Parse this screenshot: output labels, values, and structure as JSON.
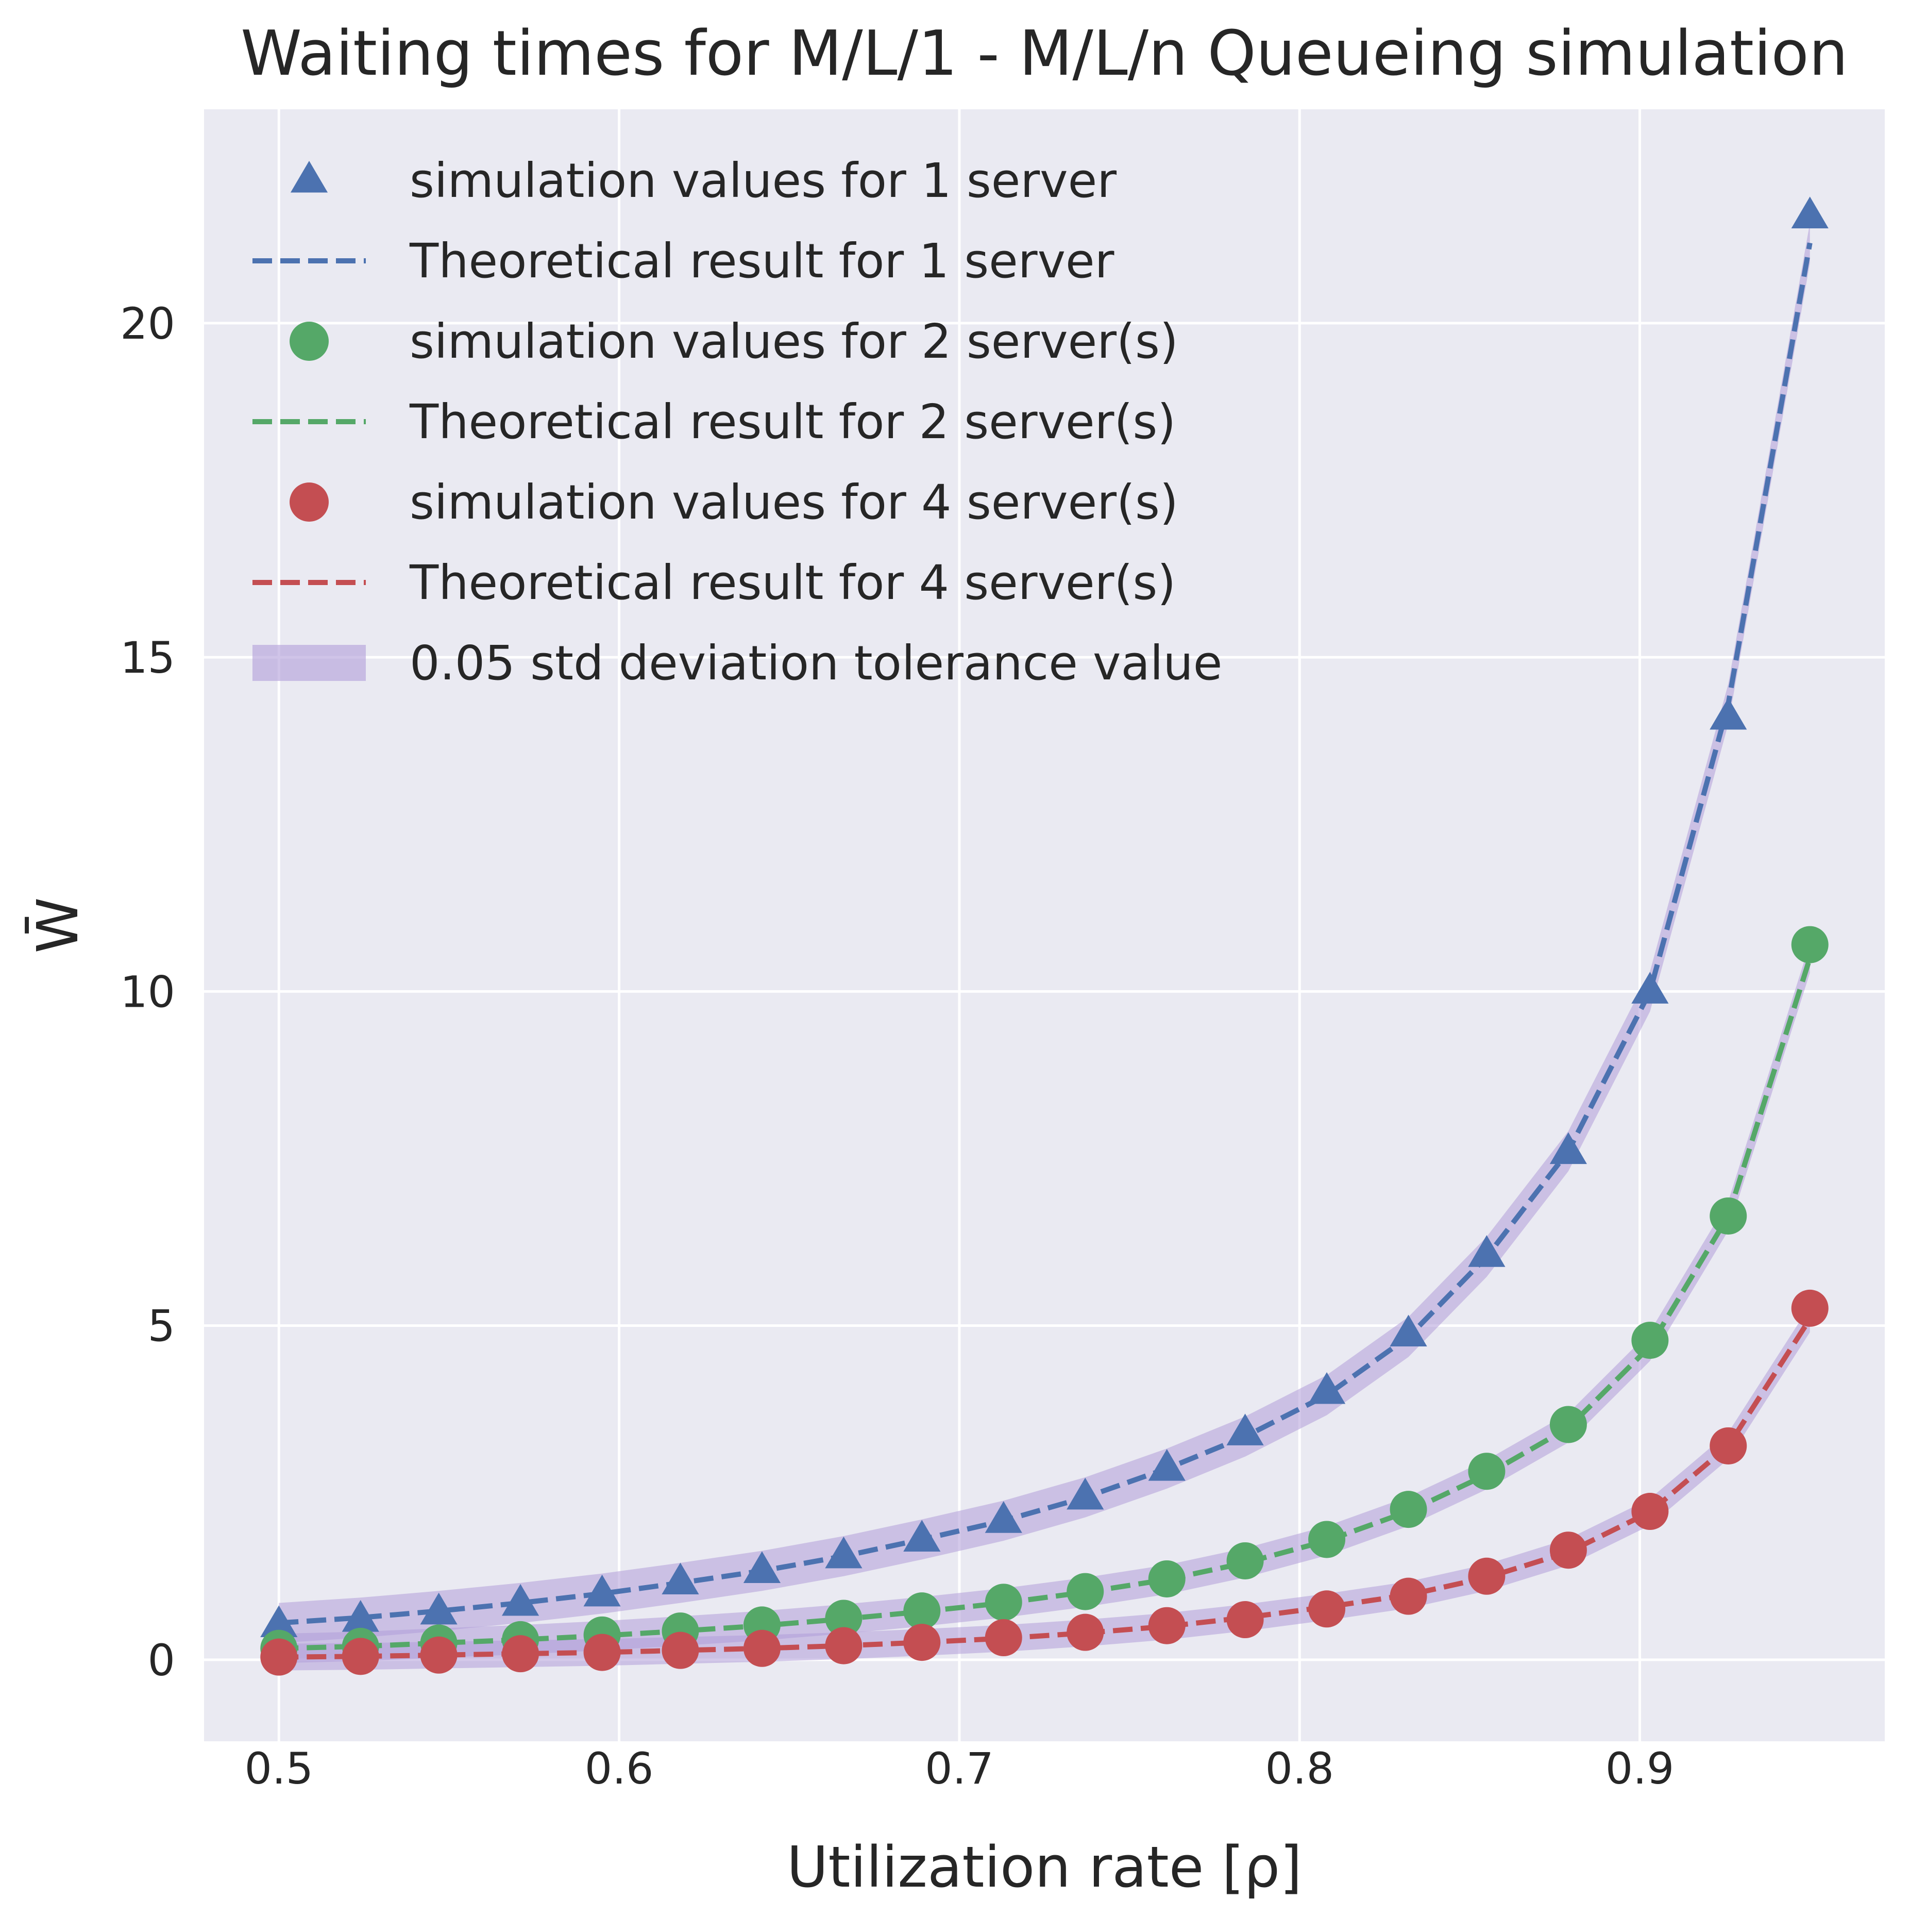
{
  "chart_data": {
    "type": "line",
    "title": "Waiting times for M/L/1 - M/L/n Queueing simulation",
    "xlabel": "Utilization rate [ρ]",
    "ylabel": "W̄",
    "xlim": [
      0.478,
      0.972
    ],
    "ylim": [
      -1.22,
      23.2
    ],
    "x_ticks": [
      "0.5",
      "0.6",
      "0.7",
      "0.8",
      "0.9"
    ],
    "y_ticks": [
      "0",
      "5",
      "10",
      "15",
      "20"
    ],
    "grid": true,
    "legend_position": "upper-left",
    "x": [
      0.5,
      0.524,
      0.547,
      0.571,
      0.595,
      0.618,
      0.642,
      0.666,
      0.689,
      0.713,
      0.737,
      0.761,
      0.784,
      0.808,
      0.832,
      0.855,
      0.879,
      0.903,
      0.926,
      0.95
    ],
    "series": [
      {
        "name": "simulation values for 1 server",
        "kind": "scatter",
        "marker": "triangle",
        "color": "#4c72b0",
        "values": [
          0.52,
          0.6,
          0.71,
          0.84,
          0.98,
          1.16,
          1.33,
          1.55,
          1.8,
          2.08,
          2.43,
          2.86,
          3.39,
          4.01,
          4.87,
          6.06,
          7.6,
          10.0,
          14.1,
          21.6
        ]
      },
      {
        "name": "Theoretical result for 1 server",
        "kind": "line",
        "dash": "dashed",
        "color": "#4c72b0",
        "values": [
          0.55,
          0.63,
          0.73,
          0.85,
          0.99,
          1.15,
          1.33,
          1.55,
          1.8,
          2.08,
          2.43,
          2.86,
          3.34,
          3.96,
          4.83,
          6.03,
          7.61,
          10.0,
          14.3,
          21.2
        ]
      },
      {
        "name": "simulation values for 2 server(s)",
        "kind": "scatter",
        "marker": "circle",
        "color": "#55a868",
        "values": [
          0.17,
          0.2,
          0.25,
          0.3,
          0.37,
          0.43,
          0.52,
          0.62,
          0.73,
          0.86,
          1.02,
          1.21,
          1.48,
          1.8,
          2.25,
          2.82,
          3.52,
          4.78,
          6.64,
          10.7
        ]
      },
      {
        "name": "Theoretical result for 2 server(s)",
        "kind": "line",
        "dash": "dashed",
        "color": "#55a868",
        "values": [
          0.17,
          0.2,
          0.25,
          0.3,
          0.36,
          0.43,
          0.51,
          0.61,
          0.72,
          0.85,
          1.01,
          1.2,
          1.45,
          1.78,
          2.22,
          2.77,
          3.47,
          4.69,
          6.64,
          10.5
        ]
      },
      {
        "name": "simulation values for 4 server(s)",
        "kind": "scatter",
        "marker": "circle",
        "color": "#c44e52",
        "values": [
          0.04,
          0.05,
          0.07,
          0.09,
          0.11,
          0.14,
          0.17,
          0.21,
          0.26,
          0.33,
          0.41,
          0.51,
          0.6,
          0.76,
          0.95,
          1.25,
          1.64,
          2.22,
          3.2,
          5.26
        ]
      },
      {
        "name": "Theoretical result for 4 server(s)",
        "kind": "line",
        "dash": "dashed",
        "color": "#c44e52",
        "values": [
          0.04,
          0.05,
          0.07,
          0.09,
          0.11,
          0.14,
          0.17,
          0.21,
          0.26,
          0.32,
          0.4,
          0.5,
          0.63,
          0.79,
          0.97,
          1.23,
          1.61,
          2.21,
          3.2,
          5.1
        ]
      }
    ],
    "band": {
      "name": "0.05 std deviation tolerance value",
      "color": "#b19cd9",
      "half_widths": [
        [
          0.3,
          0.3,
          0.3,
          0.3,
          0.3,
          0.3,
          0.3,
          0.3,
          0.3,
          0.3,
          0.3,
          0.3,
          0.3,
          0.3,
          0.3,
          0.3,
          0.3,
          0.3,
          0.3,
          0.3
        ],
        [
          0.22,
          0.22,
          0.22,
          0.22,
          0.22,
          0.22,
          0.22,
          0.22,
          0.22,
          0.22,
          0.22,
          0.22,
          0.22,
          0.22,
          0.22,
          0.22,
          0.22,
          0.22,
          0.22,
          0.22
        ],
        [
          0.2,
          0.2,
          0.2,
          0.2,
          0.2,
          0.2,
          0.2,
          0.2,
          0.2,
          0.2,
          0.2,
          0.2,
          0.2,
          0.2,
          0.2,
          0.2,
          0.2,
          0.2,
          0.2,
          0.2
        ]
      ]
    },
    "colors": {
      "plot_background": "#eaeaf2",
      "grid": "#ffffff",
      "text": "#262626"
    }
  }
}
